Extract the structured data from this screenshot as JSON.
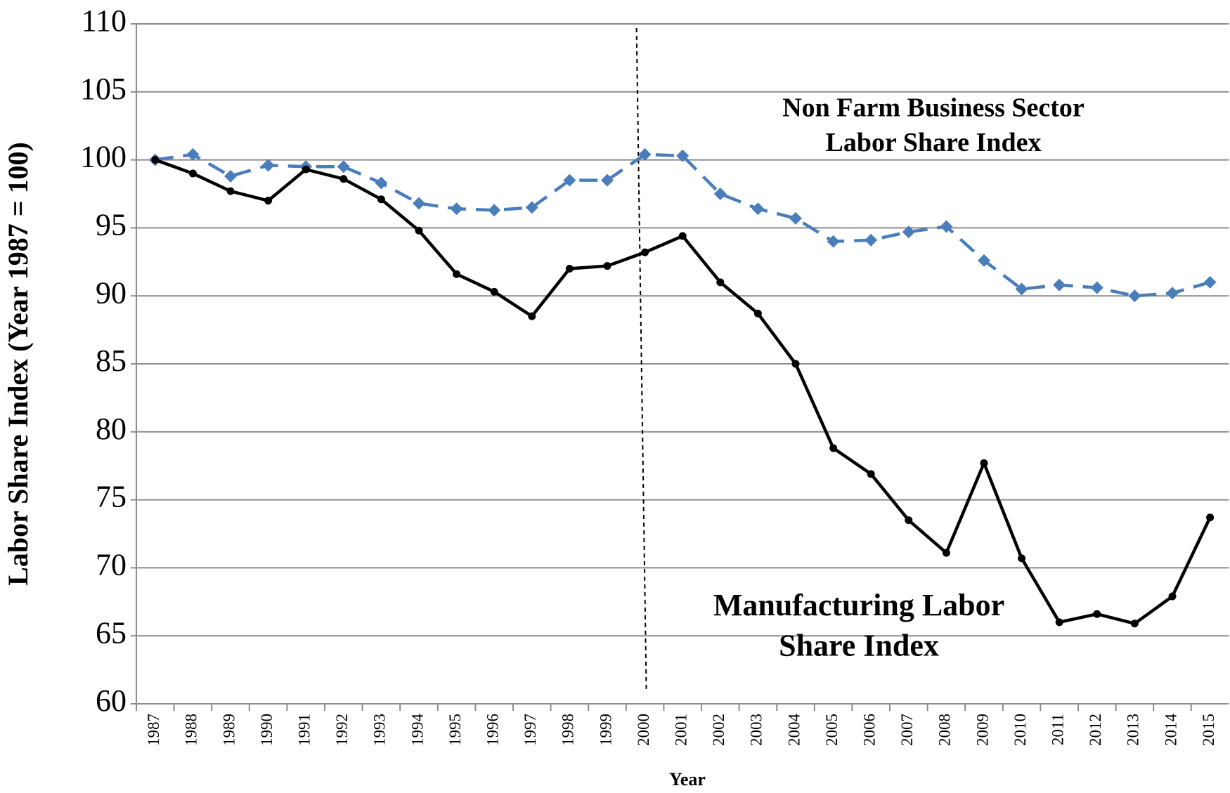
{
  "chart_data": {
    "type": "line",
    "y_label": "Labor Share Index (Year 1987 = 100)",
    "x_label": "Year",
    "categories": [
      "1987",
      "1988",
      "1989",
      "1990",
      "1991",
      "1992",
      "1993",
      "1994",
      "1995",
      "1996",
      "1997",
      "1998",
      "1999",
      "2000",
      "2001",
      "2002",
      "2003",
      "2004",
      "2005",
      "2006",
      "2007",
      "2008",
      "2009",
      "2010",
      "2011",
      "2012",
      "2013",
      "2014",
      "2015"
    ],
    "series": [
      {
        "name": "Non Farm Business Sector Labor Share Index",
        "color": "#4a7ebb",
        "dashed": true,
        "marker": "diamond",
        "values": [
          100,
          100.4,
          98.8,
          99.6,
          99.5,
          99.5,
          98.3,
          96.8,
          96.4,
          96.3,
          96.5,
          98.5,
          98.5,
          100.4,
          100.3,
          97.5,
          96.4,
          95.7,
          94.0,
          94.1,
          94.7,
          95.1,
          92.6,
          90.5,
          90.8,
          90.6,
          90.0,
          90.2,
          91.0
        ]
      },
      {
        "name": "Manufacturing Labor Share Index",
        "color": "#000000",
        "dashed": false,
        "marker": "circle",
        "values": [
          100,
          99.0,
          97.7,
          97.0,
          99.3,
          98.6,
          97.1,
          94.8,
          91.6,
          90.3,
          88.5,
          92.0,
          92.2,
          93.2,
          94.4,
          91.0,
          88.7,
          85.0,
          78.8,
          76.9,
          73.5,
          71.1,
          77.7,
          70.7,
          66.0,
          66.6,
          65.9,
          67.9,
          73.7
        ]
      }
    ],
    "annotations": [
      {
        "lines": [
          "Non Farm Business Sector",
          "Labor Share Index"
        ],
        "series": 0
      },
      {
        "lines": [
          "Manufacturing Labor",
          "Share Index"
        ],
        "series": 1
      }
    ],
    "ylim": [
      60,
      110
    ],
    "yticks": [
      60,
      65,
      70,
      75,
      80,
      85,
      90,
      95,
      100,
      105,
      110
    ],
    "grid": true
  }
}
